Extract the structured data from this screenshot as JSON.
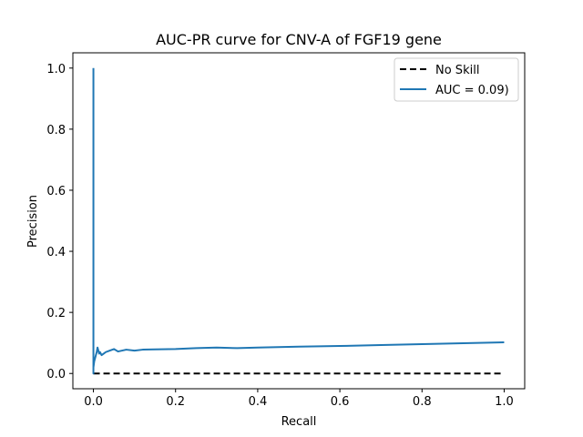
{
  "chart_data": {
    "type": "line",
    "title": "AUC-PR curve for CNV-A of FGF19 gene",
    "xlabel": "Recall",
    "ylabel": "Precision",
    "xlim": [
      -0.05,
      1.05
    ],
    "ylim": [
      -0.05,
      1.05
    ],
    "xticks": [
      "0.0",
      "0.2",
      "0.4",
      "0.6",
      "0.8",
      "1.0"
    ],
    "yticks": [
      "0.0",
      "0.2",
      "0.4",
      "0.6",
      "0.8",
      "1.0"
    ],
    "grid": false,
    "legend_position": "top-right",
    "series": [
      {
        "name": "No Skill",
        "style": "dashed",
        "color": "#000000",
        "x": [
          0.0,
          1.0
        ],
        "y": [
          0.0,
          0.0
        ]
      },
      {
        "name": "AUC = 0.09)",
        "style": "solid",
        "color": "#1f77b4",
        "x": [
          0.0,
          0.0,
          0.0,
          0.002,
          0.004,
          0.006,
          0.008,
          0.01,
          0.012,
          0.014,
          0.016,
          0.02,
          0.025,
          0.03,
          0.04,
          0.05,
          0.06,
          0.08,
          0.1,
          0.12,
          0.15,
          0.2,
          0.25,
          0.3,
          0.35,
          0.4,
          0.5,
          0.6,
          0.7,
          0.8,
          0.9,
          1.0
        ],
        "y": [
          1.0,
          0.0,
          0.02,
          0.04,
          0.05,
          0.06,
          0.07,
          0.085,
          0.075,
          0.065,
          0.07,
          0.06,
          0.065,
          0.07,
          0.075,
          0.08,
          0.072,
          0.078,
          0.075,
          0.078,
          0.079,
          0.08,
          0.083,
          0.085,
          0.083,
          0.085,
          0.088,
          0.09,
          0.093,
          0.096,
          0.099,
          0.102
        ]
      }
    ]
  }
}
